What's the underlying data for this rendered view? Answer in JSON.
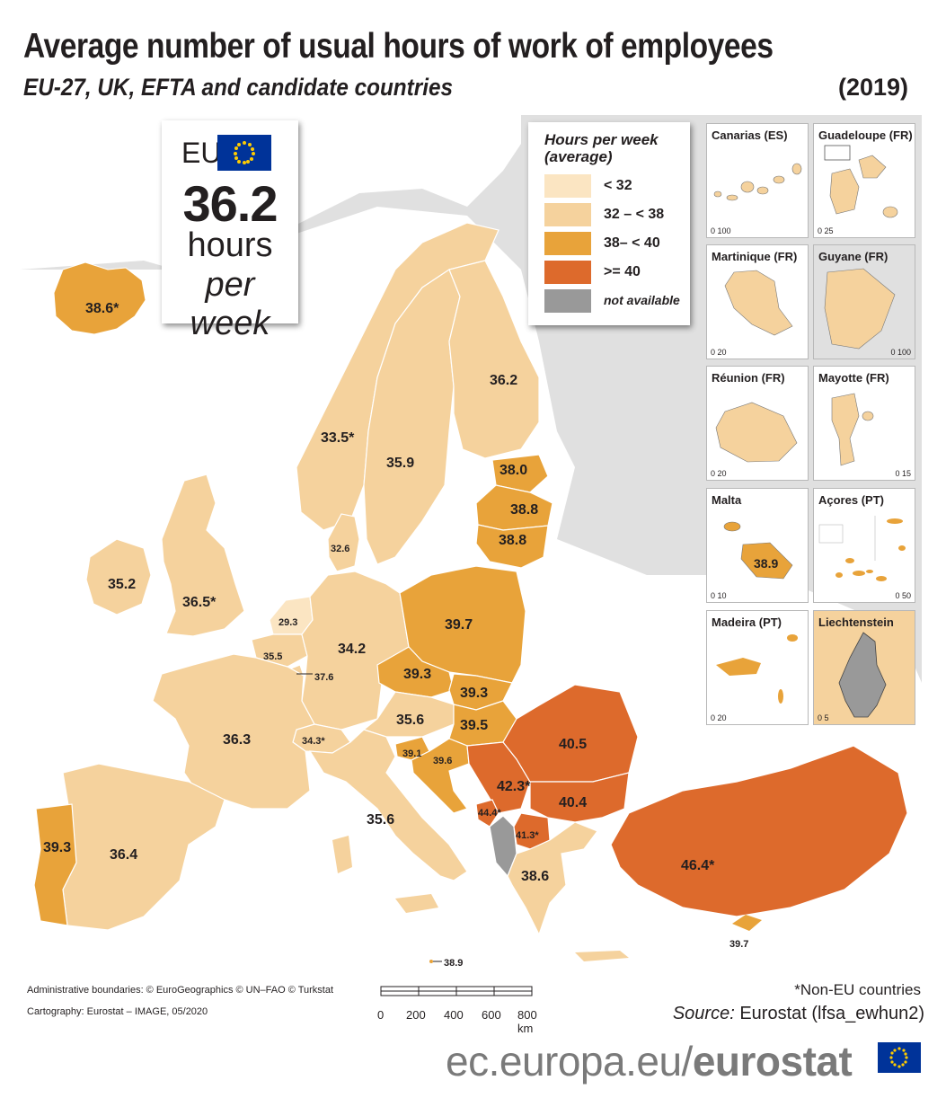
{
  "title": "Average number of usual hours of work of employees",
  "subtitle": "EU-27, UK, EFTA and candidate countries",
  "year": "(2019)",
  "eu_box": {
    "label": "EU",
    "value": "36.2",
    "unit": "hours",
    "per": "per week"
  },
  "legend": {
    "title_line1": "Hours per week",
    "title_line2": "(average)",
    "items": [
      {
        "label": "< 32",
        "color": "#fbe5c2"
      },
      {
        "label": "32 – < 38",
        "color": "#f5d29d"
      },
      {
        "label": "38– < 40",
        "color": "#e8a33a"
      },
      {
        "label": ">= 40",
        "color": "#dd6a2c"
      },
      {
        "label": "not available",
        "color": "#999999"
      }
    ]
  },
  "colors": {
    "sea": "#ffffff",
    "land_outside": "#e0e0e0",
    "c1": "#fbe5c2",
    "c2": "#f5d29d",
    "c3": "#e8a33a",
    "c4": "#dd6a2c",
    "na": "#999999"
  },
  "labels": {
    "iceland": "38.6*",
    "norway": "33.5*",
    "sweden": "35.9",
    "finland": "36.2",
    "estonia": "38.0",
    "latvia": "38.8",
    "lithuania": "38.8",
    "denmark": "32.6",
    "ireland": "35.2",
    "uk": "36.5*",
    "netherlands": "29.3",
    "belgium": "35.5",
    "luxembourg": "37.6",
    "germany": "34.2",
    "poland": "39.7",
    "czechia": "39.3",
    "slovakia": "39.3",
    "austria": "35.6",
    "hungary": "39.5",
    "switzerland": "34.3*",
    "france": "36.3",
    "slovenia": "39.1",
    "croatia": "39.6",
    "serbia": "42.3*",
    "romania": "40.5",
    "bulgaria": "40.4",
    "montenegro": "44.4*",
    "north_macedonia": "41.3*",
    "greece": "38.6",
    "turkey": "46.4*",
    "cyprus": "39.7",
    "italy": "35.6",
    "spain": "36.4",
    "portugal": "39.3",
    "malta_main": "38.9"
  },
  "insets": [
    {
      "name": "Canarias (ES)",
      "scale": "0  100"
    },
    {
      "name": "Guadeloupe (FR)",
      "scale": "0  25"
    },
    {
      "name": "Martinique (FR)",
      "scale": "0  20"
    },
    {
      "name": "Guyane (FR)",
      "scale": "0  100"
    },
    {
      "name": "Réunion (FR)",
      "scale": "0  20"
    },
    {
      "name": "Mayotte (FR)",
      "scale": "0  15"
    },
    {
      "name": "Malta",
      "scale": "0  10",
      "value": "38.9"
    },
    {
      "name": "Açores (PT)",
      "scale": "0  50"
    },
    {
      "name": "Madeira (PT)",
      "scale": "0  20"
    },
    {
      "name": "Liechtenstein",
      "scale": "0  5"
    }
  ],
  "footer": {
    "boundaries": "Administrative boundaries: © EuroGeographics © UN–FAO © Turkstat",
    "cartography": "Cartography: Eurostat – IMAGE, 05/2020",
    "scale_ticks": [
      "0",
      "200",
      "400",
      "600",
      "800 km"
    ],
    "non_eu": "*Non-EU countries",
    "source_label": "Source:",
    "source_text": "Eurostat (lfsa_ewhun2)",
    "brand_plain": "ec.europa.eu/",
    "brand_bold": "eurostat"
  }
}
